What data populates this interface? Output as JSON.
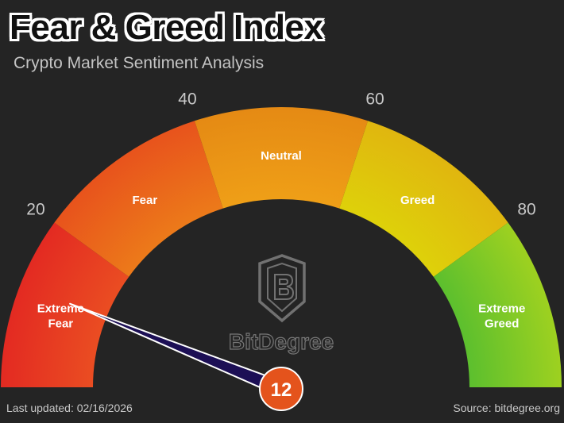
{
  "header": {
    "title": "Fear & Greed Index",
    "subtitle": "Crypto Market Sentiment Analysis"
  },
  "footer": {
    "last_updated": "Last updated: 02/16/2026",
    "source": "Source: bitdegree.org"
  },
  "watermark": {
    "text": "BitDegree",
    "icon": "bitdegree-logo-icon"
  },
  "chart_data": {
    "type": "gauge",
    "range": [
      0,
      100
    ],
    "value": 12,
    "value_label": "12",
    "ticks": [
      {
        "value": 20,
        "label": "20"
      },
      {
        "value": 40,
        "label": "40"
      },
      {
        "value": 60,
        "label": "60"
      },
      {
        "value": 80,
        "label": "80"
      }
    ],
    "zones": [
      {
        "from": 0,
        "to": 20,
        "lines": [
          "Extreme",
          "Fear"
        ],
        "color_outer": "#e32a22",
        "color_inner": "#ea4d22"
      },
      {
        "from": 20,
        "to": 40,
        "lines": [
          "Fear"
        ],
        "color_outer": "#e8531c",
        "color_inner": "#ec7a1a"
      },
      {
        "from": 40,
        "to": 60,
        "lines": [
          "Neutral"
        ],
        "color_outer": "#e58a14",
        "color_inner": "#ef9f17"
      },
      {
        "from": 60,
        "to": 80,
        "lines": [
          "Greed"
        ],
        "color_outer": "#e0b60f",
        "color_inner": "#ded10a"
      },
      {
        "from": 80,
        "to": 100,
        "lines": [
          "Extreme",
          "Greed"
        ],
        "color_outer": "#9ed120",
        "color_inner": "#5cbf2e"
      }
    ],
    "needle_color": "#1c0f55",
    "value_bubble_color": "#e4531c"
  }
}
